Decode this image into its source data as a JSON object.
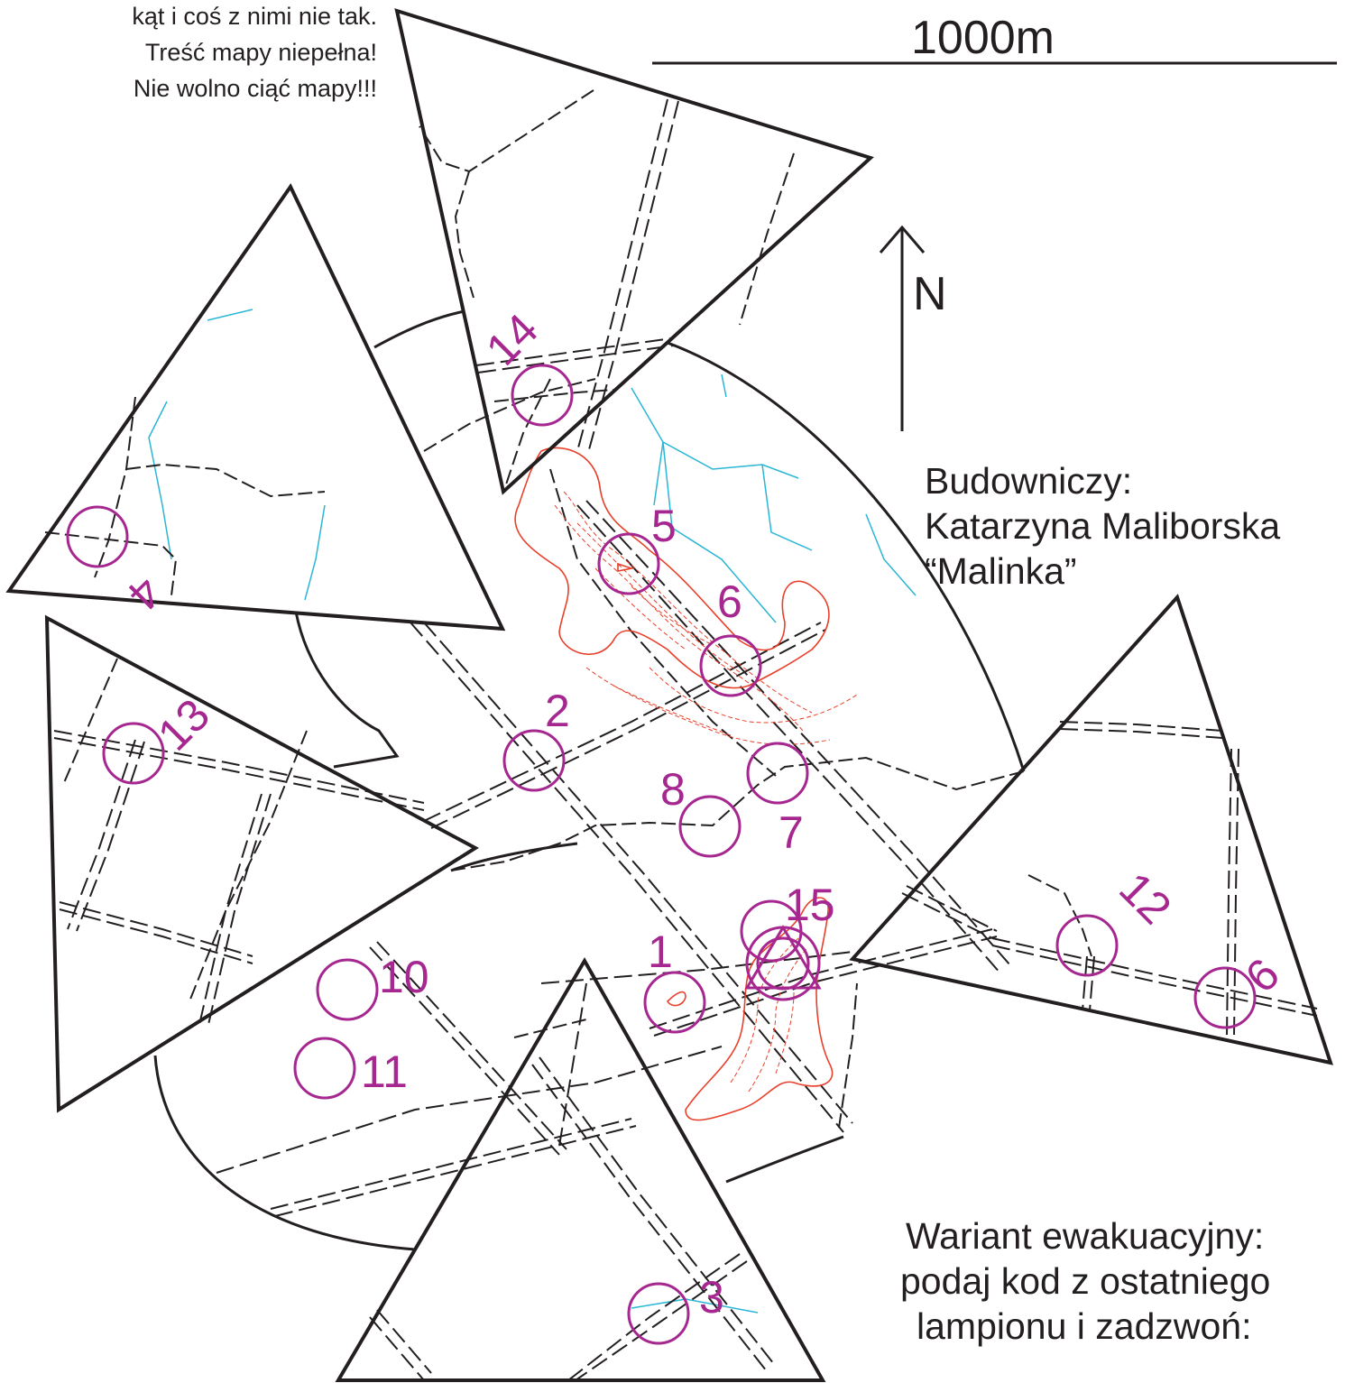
{
  "warning_lines": [
    "kąt i coś z nimi nie tak.",
    "Treść mapy niepełna!",
    "Nie wolno ciąć mapy!!!"
  ],
  "scale_label": "1000m",
  "north_label": "N",
  "course_setter": {
    "heading": "Budowniczy:",
    "name": "Katarzyna Maliborska",
    "nickname": "“Malinka”"
  },
  "evacuation": {
    "line1": "Wariant ewakuacyjny:",
    "line2": "podaj kod z ostatniego",
    "line3": "lampionu i zadzwoń:"
  },
  "controls": [
    {
      "number": "1"
    },
    {
      "number": "2"
    },
    {
      "number": "3"
    },
    {
      "number": "4"
    },
    {
      "number": "5"
    },
    {
      "number": "6"
    },
    {
      "number": "7"
    },
    {
      "number": "8"
    },
    {
      "number": "9"
    },
    {
      "number": "10"
    },
    {
      "number": "11"
    },
    {
      "number": "12"
    },
    {
      "number": "13"
    },
    {
      "number": "14"
    },
    {
      "number": "15"
    }
  ],
  "colors": {
    "ink": "#231f20",
    "control": "#a5278f",
    "contour": "#e8402a",
    "water": "#29b6d6"
  }
}
